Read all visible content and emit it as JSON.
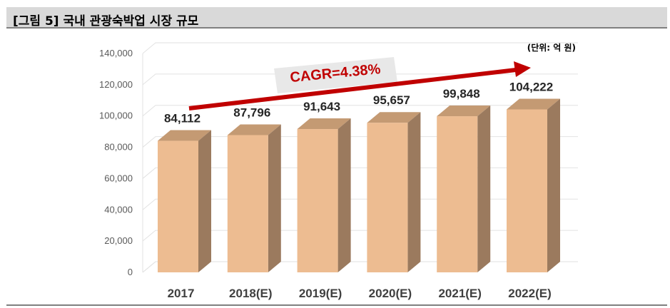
{
  "header": {
    "title": "[그림 5] 국내 관광숙박업 시장 규모"
  },
  "unit_label": "(단위: 억 원)",
  "annotation": {
    "text": "CAGR=4.38%",
    "color": "#c00000"
  },
  "colors": {
    "bar_front": "#EDBC91",
    "bar_side": "#9B7A5E",
    "bar_top": "#C49A73",
    "grid": "#E2E2E2"
  },
  "chart_data": {
    "type": "bar",
    "categories": [
      "2017",
      "2018(E)",
      "2019(E)",
      "2020(E)",
      "2021(E)",
      "2022(E)"
    ],
    "values": [
      84112,
      87796,
      91643,
      95657,
      99848,
      104222
    ],
    "data_labels": [
      "84,112",
      "87,796",
      "91,643",
      "95,657",
      "99,848",
      "104,222"
    ],
    "yticks": [
      0,
      20000,
      40000,
      60000,
      80000,
      100000,
      120000,
      140000
    ],
    "ytick_labels": [
      "0",
      "20,000",
      "40,000",
      "60,000",
      "80,000",
      "100,000",
      "120,000",
      "140,000"
    ],
    "ylim": [
      0,
      140000
    ],
    "grid": true,
    "style": "3d-column",
    "title": "",
    "xlabel": "",
    "ylabel": ""
  }
}
